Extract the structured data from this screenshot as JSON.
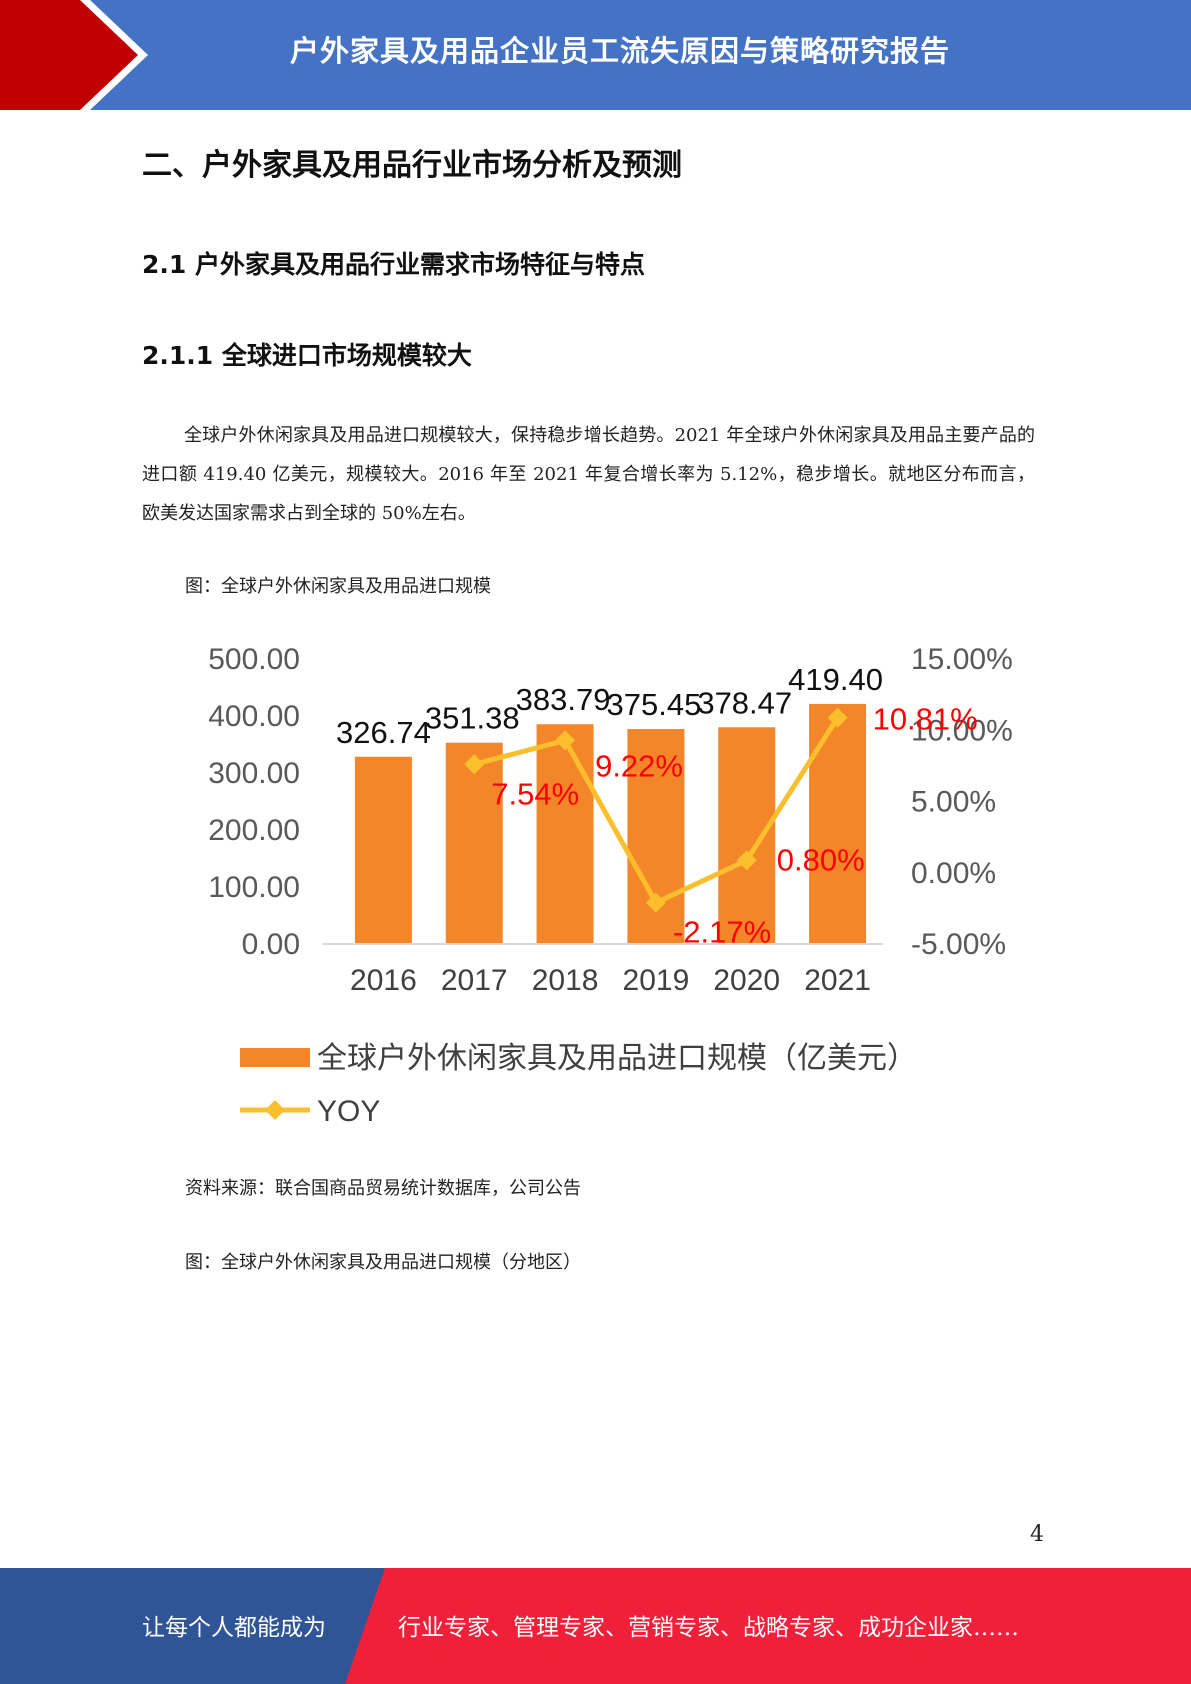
{
  "header": {
    "title": "户外家具及用品企业员工流失原因与策略研究报告",
    "colors": {
      "band": "#4472c4",
      "accent_red": "#c00000"
    }
  },
  "section": {
    "h1": "二、户外家具及用品行业市场分析及预测",
    "h2": "2.1  户外家具及用品行业需求市场特征与特点",
    "h3": "2.1.1  全球进口市场规模较大"
  },
  "body": {
    "paragraph": "全球户外休闲家具及用品进口规模较大，保持稳步增长趋势。2021 年全球户外休闲家具及用品主要产品的进口额 419.40 亿美元，规模较大。2016 年至 2021 年复合增长率为 5.12%，稳步增长。就地区分布而言，欧美发达国家需求占到全球的 50%左右。",
    "figure1_caption": "图：全球户外休闲家具及用品进口规模",
    "source": "资料来源：联合国商品贸易统计数据库，公司公告",
    "figure2_caption": "图：全球户外休闲家具及用品进口规模（分地区）"
  },
  "chart_data": {
    "type": "bar",
    "categories": [
      "2016",
      "2017",
      "2018",
      "2019",
      "2020",
      "2021"
    ],
    "series": [
      {
        "name": "全球户外休闲家具及用品进口规模（亿美元）",
        "type": "bar",
        "axis": "left",
        "values": [
          326.74,
          351.38,
          383.79,
          375.45,
          378.47,
          419.4
        ],
        "labels": [
          "326.74",
          "351.38",
          "383.79",
          "375.45",
          "378.47",
          "419.40"
        ],
        "color": "#f4862a"
      },
      {
        "name": "YOY",
        "type": "line",
        "axis": "right",
        "values": [
          null,
          7.54,
          9.22,
          -2.17,
          0.8,
          10.81
        ],
        "labels": [
          "",
          "7.54%",
          "9.22%",
          "-2.17%",
          "0.80%",
          "10.81%"
        ],
        "color": "#fbbf2d",
        "label_color": "#ff0000"
      }
    ],
    "ylim_left": [
      0,
      500
    ],
    "yticks_left": [
      "500.00",
      "400.00",
      "300.00",
      "200.00",
      "100.00",
      "0.00"
    ],
    "ylim_right": [
      -5,
      15
    ],
    "yticks_right": [
      "15.00%",
      "10.00%",
      "5.00%",
      "0.00%",
      "-5.00%"
    ],
    "legend": "bottom",
    "grid": false
  },
  "page_number": "4",
  "footer": {
    "left": "让每个人都能成为",
    "right": "行业专家、管理专家、营销专家、战略专家、成功企业家……",
    "colors": {
      "left_band": "#2f5597",
      "right_band": "#f0203a"
    }
  }
}
